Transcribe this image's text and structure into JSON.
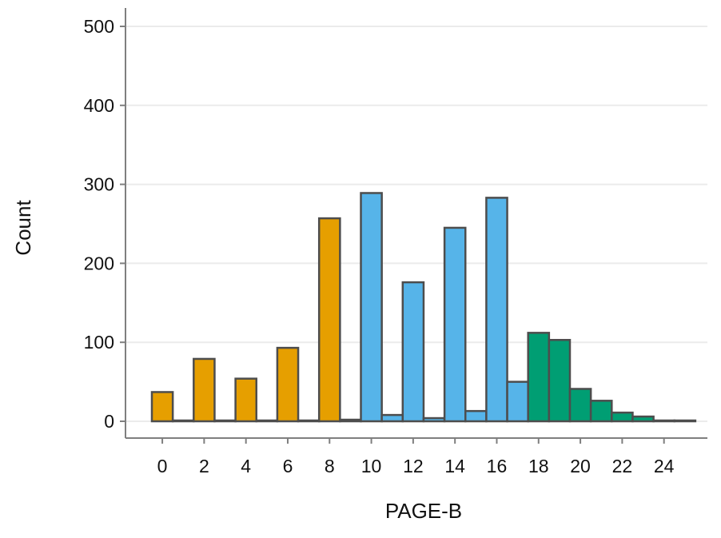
{
  "chart_data": {
    "type": "bar",
    "title": "",
    "xlabel": "PAGE-B",
    "ylabel": "Count",
    "x": [
      0,
      1,
      2,
      3,
      4,
      5,
      6,
      7,
      8,
      9,
      10,
      11,
      12,
      13,
      14,
      15,
      16,
      17,
      18,
      19,
      20,
      21,
      22,
      23,
      24,
      25
    ],
    "values": [
      37,
      0,
      79,
      0,
      54,
      0,
      93,
      0,
      257,
      2,
      289,
      8,
      176,
      4,
      245,
      13,
      283,
      50,
      112,
      103,
      41,
      26,
      11,
      6,
      0,
      1
    ],
    "bar_groups": [
      "orange",
      "orange",
      "orange",
      "orange",
      "orange",
      "orange",
      "orange",
      "orange",
      "orange",
      "orange",
      "blue",
      "blue",
      "blue",
      "blue",
      "blue",
      "blue",
      "blue",
      "blue",
      "green",
      "green",
      "green",
      "green",
      "green",
      "green",
      "green",
      "green"
    ],
    "colors": {
      "orange": "#E69F00",
      "blue": "#56B4E9",
      "green": "#009E73",
      "outline": "#4D4D4D",
      "grid": "#EBEBEB",
      "axis": "#333333"
    },
    "x_ticks": [
      0,
      2,
      4,
      6,
      8,
      10,
      12,
      14,
      16,
      18,
      20,
      22,
      24
    ],
    "y_ticks": [
      0,
      100,
      200,
      300,
      400,
      500
    ],
    "ylim": [
      0,
      500
    ],
    "grid": true,
    "legend": "none"
  }
}
